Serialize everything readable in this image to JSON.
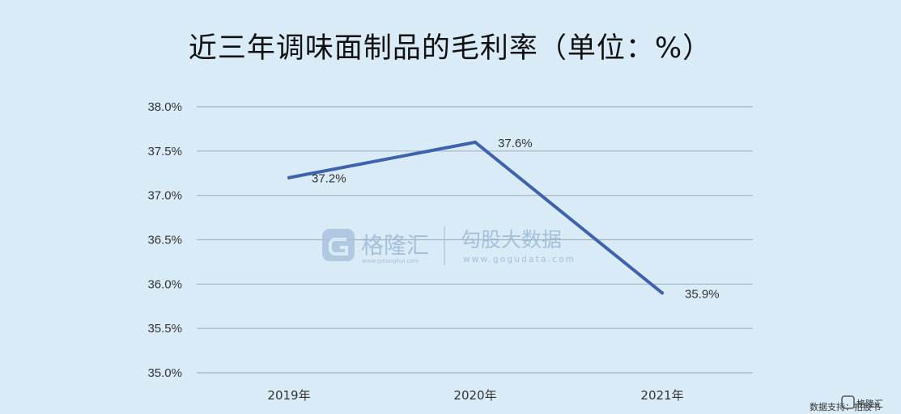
{
  "chart_data": {
    "type": "line",
    "title": "近三年调味面制品的毛利率（单位：%）",
    "categories": [
      "2019年",
      "2020年",
      "2021年"
    ],
    "series": [
      {
        "values": [
          37.2,
          37.6,
          35.9
        ],
        "data_labels": [
          "37.2%",
          "37.6%",
          "35.9%"
        ],
        "color": "#3f62ad"
      }
    ],
    "ylim": [
      35.0,
      38.0
    ],
    "yticks": [
      38.0,
      37.5,
      37.0,
      36.5,
      36.0,
      35.5,
      35.0
    ],
    "ytick_labels": [
      "38.0%",
      "37.5%",
      "37.0%",
      "36.5%",
      "36.0%",
      "35.5%",
      "35.0%"
    ],
    "grid": true,
    "legend": "none"
  },
  "watermark": {
    "brand_cn": "格隆汇",
    "brand_url": "www.gelonghui.com",
    "product_cn": "勾股大数据",
    "product_url": "www.gogudata.com"
  },
  "footer": {
    "source": "数据支持：招股书",
    "logo_text": "格隆汇"
  },
  "colors": {
    "background": "#d9ebf7",
    "line": "#3f62ad",
    "grid": "#a6b3bd"
  }
}
